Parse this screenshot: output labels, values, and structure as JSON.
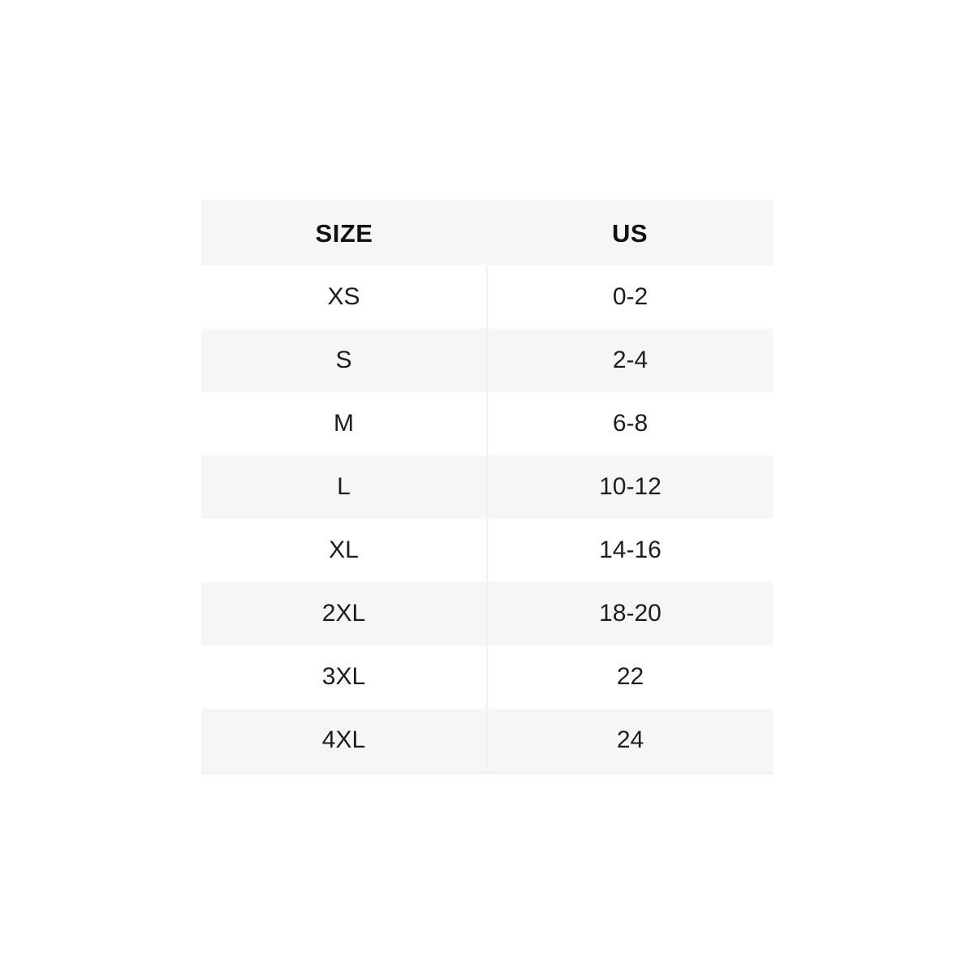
{
  "page": {
    "background": "#ffffff"
  },
  "colors": {
    "header_background": "#f6f6f6",
    "stripe_background": "#f6f6f6",
    "row_background": "#ffffff",
    "header_text": "#111111",
    "cell_text": "#1d1d1d",
    "column_divider": "#f1f1f1"
  },
  "size_chart": {
    "columns": [
      "SIZE",
      "US"
    ],
    "rows": [
      {
        "size": "XS",
        "us": "0-2"
      },
      {
        "size": "S",
        "us": "2-4"
      },
      {
        "size": "M",
        "us": "6-8"
      },
      {
        "size": "L",
        "us": "10-12"
      },
      {
        "size": "XL",
        "us": "14-16"
      },
      {
        "size": "2XL",
        "us": "18-20"
      },
      {
        "size": "3XL",
        "us": "22"
      },
      {
        "size": "4XL",
        "us": "24"
      }
    ]
  },
  "chart_data": {
    "type": "table",
    "columns": [
      "SIZE",
      "US"
    ],
    "rows": [
      [
        "XS",
        "0-2"
      ],
      [
        "S",
        "2-4"
      ],
      [
        "M",
        "6-8"
      ],
      [
        "L",
        "10-12"
      ],
      [
        "XL",
        "14-16"
      ],
      [
        "2XL",
        "18-20"
      ],
      [
        "3XL",
        "22"
      ],
      [
        "4XL",
        "24"
      ]
    ]
  }
}
